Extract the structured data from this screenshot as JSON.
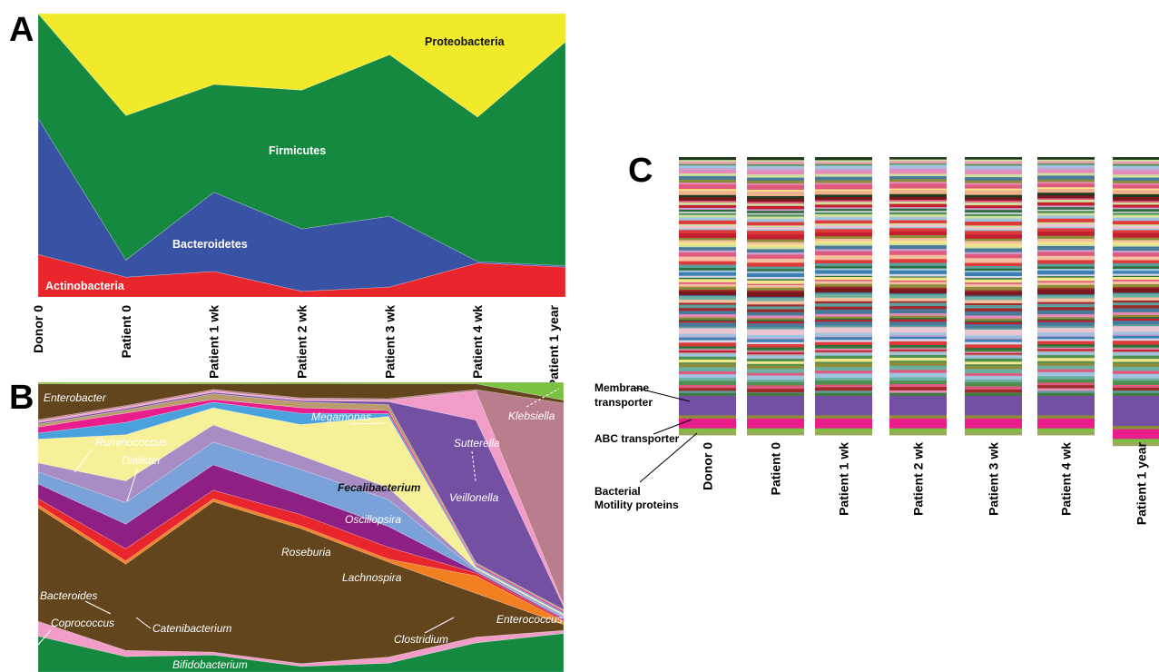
{
  "chart_data": [
    {
      "panel": "A",
      "type": "area",
      "stacked": true,
      "normalized": true,
      "categories": [
        "Donor 0",
        "Patient 0",
        "Patient 1 wk",
        "Patient 2 wk",
        "Patient 3 wk",
        "Patient 4 wk",
        "Patient 1 year"
      ],
      "series": [
        {
          "name": "Actinobacteria",
          "color": "#e8262b",
          "values": [
            0.15,
            0.07,
            0.09,
            0.02,
            0.035,
            0.12,
            0.105
          ]
        },
        {
          "name": "Bacteroidetes",
          "color": "#3953a4",
          "values": [
            0.48,
            0.06,
            0.28,
            0.22,
            0.25,
            0.005,
            0.005
          ]
        },
        {
          "name": "Firmicutes",
          "color": "#15893f",
          "values": [
            0.37,
            0.51,
            0.38,
            0.49,
            0.57,
            0.51,
            0.79
          ]
        },
        {
          "name": "Proteobacteria",
          "color": "#f0ea2a",
          "values": [
            0.0,
            0.36,
            0.25,
            0.27,
            0.145,
            0.365,
            0.1
          ]
        }
      ]
    },
    {
      "panel": "B",
      "type": "area",
      "stacked": true,
      "normalized": true,
      "categories": [
        "Donor 0",
        "Patient 0",
        "Patient 1 wk",
        "Patient 2 wk",
        "Patient 3 wk",
        "Patient 4 wk",
        "Patient 1 year"
      ],
      "series": [
        {
          "name": "Bifidobacterium",
          "color": "#15893f",
          "values": [
            0.12,
            0.05,
            0.06,
            0.02,
            0.03,
            0.1,
            0.13
          ]
        },
        {
          "name": "Coprococcus",
          "color": "#f29cc8",
          "values": [
            0.05,
            0.02,
            0.01,
            0.01,
            0.02,
            0.02,
            0.01
          ]
        },
        {
          "name": "Bacteroides",
          "color": "#62441d",
          "values": [
            0.38,
            0.28,
            0.53,
            0.48,
            0.32,
            0.15,
            0.02
          ]
        },
        {
          "name": "Clostridium",
          "color": "#f27f20",
          "values": [
            0.01,
            0.01,
            0.01,
            0.01,
            0.01,
            0.06,
            0.01
          ]
        },
        {
          "name": "Catenibacterium",
          "color": "#e8262b",
          "values": [
            0.02,
            0.04,
            0.03,
            0.04,
            0.04,
            0.01,
            0.005
          ]
        },
        {
          "name": "Lachnospira",
          "color": "#8e1f83",
          "values": [
            0.05,
            0.08,
            0.09,
            0.07,
            0.07,
            0.005,
            0.005
          ]
        },
        {
          "name": "Roseburia",
          "color": "#7aa2d8",
          "values": [
            0.04,
            0.07,
            0.08,
            0.09,
            0.09,
            0.005,
            0.005
          ]
        },
        {
          "name": "Oscillopsira",
          "color": "#a88dc4",
          "values": [
            0.03,
            0.07,
            0.06,
            0.05,
            0.04,
            0.005,
            0.005
          ]
        },
        {
          "name": "Fecalibacterium",
          "color": "#f6f199",
          "values": [
            0.08,
            0.15,
            0.06,
            0.11,
            0.24,
            0.005,
            0.005
          ]
        },
        {
          "name": "Dialister",
          "color": "#4aa2dd",
          "values": [
            0.02,
            0.04,
            0.02,
            0.04,
            0.01,
            0.005,
            0.005
          ]
        },
        {
          "name": "Ruminococcus",
          "color": "#e91e8c",
          "values": [
            0.02,
            0.03,
            0.01,
            0.02,
            0.01,
            0.005,
            0.005
          ]
        },
        {
          "name": "Megamonas",
          "color": "#b89c6c",
          "values": [
            0.01,
            0.01,
            0.02,
            0.02,
            0.02,
            0.005,
            0.005
          ]
        },
        {
          "name": "Veillonella",
          "color": "#7350a2",
          "values": [
            0.005,
            0.005,
            0.005,
            0.005,
            0.01,
            0.49,
            0.01
          ]
        },
        {
          "name": "Sutterella",
          "color": "#f29cc8",
          "values": [
            0.005,
            0.005,
            0.005,
            0.005,
            0.005,
            0.1,
            0.005
          ]
        },
        {
          "name": "Enterococcus",
          "color": "#b97d8b",
          "values": [
            0.005,
            0.005,
            0.005,
            0.005,
            0.005,
            0.005,
            0.68
          ]
        },
        {
          "name": "Enterobacter",
          "color": "#62441d",
          "values": [
            0.12,
            0.07,
            0.02,
            0.05,
            0.05,
            0.02,
            0.01
          ]
        },
        {
          "name": "Klebsiella",
          "color": "#7cc242",
          "values": [
            0.005,
            0.005,
            0.005,
            0.005,
            0.005,
            0.005,
            0.06
          ]
        }
      ]
    },
    {
      "panel": "C",
      "type": "bar",
      "stacked": true,
      "normalized": true,
      "categories": [
        "Donor 0",
        "Patient 0",
        "Patient 1 wk",
        "Patient 2 wk",
        "Patient 3 wk",
        "Patient 4 wk",
        "Patient 1 year"
      ],
      "annotations": [
        "Membrane transporter",
        "ABC transporter",
        "Bacterial Motility proteins"
      ]
    }
  ],
  "panels": {
    "a": "A",
    "b": "B",
    "c": "C"
  },
  "panel_a": {
    "labels": {
      "proteobacteria": "Proteobacteria",
      "firmicutes": "Firmicutes",
      "bacteroidetes": "Bacteroidetes",
      "actinobacteria": "Actinobacteria"
    }
  },
  "panel_b": {
    "labels": {
      "enterobacter": "Enterobacter",
      "ruminococcus": "Ruminococcus",
      "dialister": "Dialister",
      "megamonas": "Megamonas",
      "fecalibacterium": "Fecalibacterium",
      "oscillopsira": "Oscillopsira",
      "roseburia": "Roseburia",
      "lachnospira": "Lachnospira",
      "bacteroides": "Bacteroides",
      "catenibacterium": "Catenibacterium",
      "coprococcus": "Coprococcus",
      "clostridium": "Clostridium",
      "bifidobacterium": "Bifidobacterium",
      "veillonella": "Veillonella",
      "sutterella": "Sutterella",
      "klebsiella": "Klebsiella",
      "enterococcus": "Enterococcus"
    }
  },
  "panel_c": {
    "membrane_1": "Membrane",
    "membrane_2": "transporter",
    "abc": "ABC transporter",
    "motility_1": "Bacterial",
    "motility_2": "Motility proteins"
  },
  "palette_c": [
    "#5e9e9e",
    "#e88ab8",
    "#e9c6d0",
    "#4a7a9a",
    "#f0b28c",
    "#d0e0a0",
    "#7a1820",
    "#c22030",
    "#2e6b3a",
    "#a0c4e0",
    "#f3e58a",
    "#8c8c3a",
    "#e6a0b0",
    "#203a20",
    "#b0b0b0",
    "#df3a3a",
    "#6bb0a0",
    "#3d7fb0",
    "#c9a0d0",
    "#9e2a2a",
    "#f5c0a0",
    "#4f8f4f",
    "#d6d6e8",
    "#e05a80"
  ]
}
